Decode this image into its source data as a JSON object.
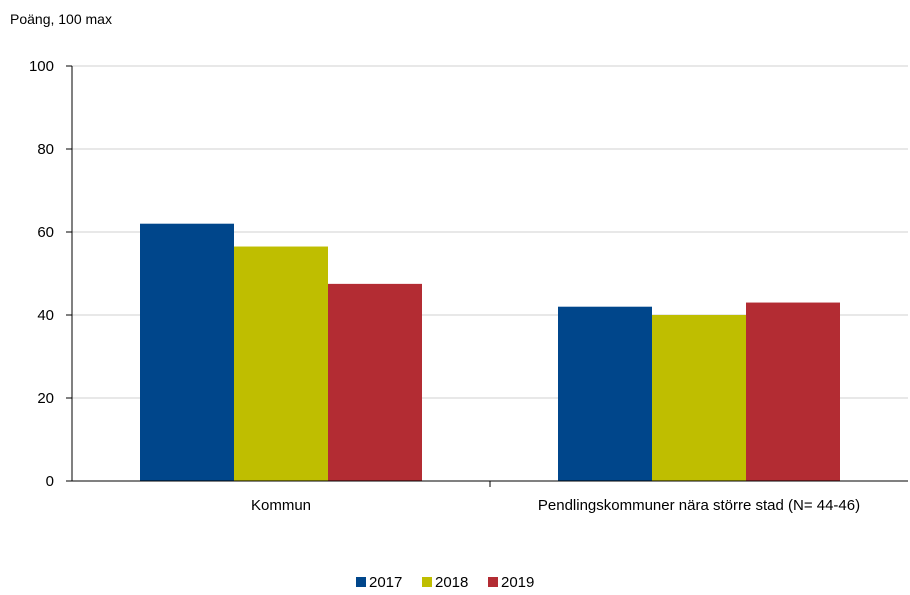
{
  "chart_data": {
    "type": "bar",
    "ylabel": "Poäng, 100 max",
    "xlabel": "",
    "ylim": [
      0,
      100
    ],
    "yticks": [
      0,
      20,
      40,
      60,
      80,
      100
    ],
    "grid": true,
    "legend_position": "bottom-center",
    "categories": [
      "Kommun",
      "Pendlingskommuner nära större stad (N= 44-46)"
    ],
    "series": [
      {
        "name": "2017",
        "color": "#00468b",
        "values": [
          62,
          42
        ]
      },
      {
        "name": "2018",
        "color": "#bfbe00",
        "values": [
          56.5,
          40
        ]
      },
      {
        "name": "2019",
        "color": "#b32c33",
        "values": [
          47.5,
          43
        ]
      }
    ]
  }
}
